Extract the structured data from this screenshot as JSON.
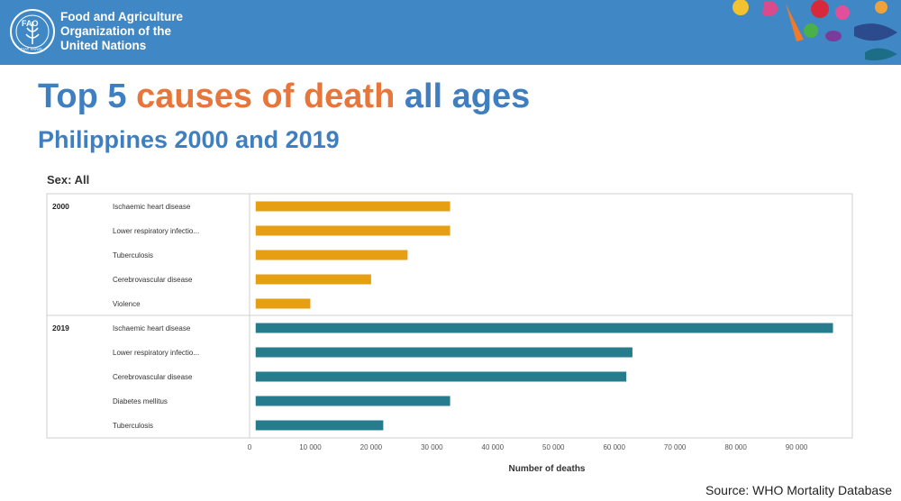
{
  "header": {
    "org_line1": "Food and Agriculture",
    "org_line2": "Organization of the",
    "org_line3": "United Nations",
    "logo_text": "FAO",
    "logo_motto": "FIAT PANIS"
  },
  "title": {
    "part1": "Top 5 ",
    "part2": "causes of death",
    "part3": " all ages"
  },
  "subtitle": "Philippines 2000 and 2019",
  "sex_label": "Sex: All",
  "source": "Source: WHO Mortality Database",
  "colors": {
    "header_bg": "#3f88c5",
    "title_blue": "#3f7fc0",
    "title_orange": "#e8763a",
    "bar_2000": "#e69f12",
    "bar_2019": "#267c8c"
  },
  "chart_data": {
    "type": "bar",
    "orientation": "horizontal",
    "xlabel": "Number of deaths",
    "xlim": [
      0,
      98000
    ],
    "xticks": [
      0,
      10000,
      20000,
      30000,
      40000,
      50000,
      60000,
      70000,
      80000,
      90000
    ],
    "xtick_labels": [
      "0",
      "10 000",
      "20 000",
      "30 000",
      "40 000",
      "50 000",
      "60 000",
      "70 000",
      "80 000",
      "90 000"
    ],
    "groups": [
      {
        "name": "2000",
        "color": "#e69f12",
        "categories": [
          "Ischaemic heart disease",
          "Lower respiratory infectio...",
          "Tuberculosis",
          "Cerebrovascular disease",
          "Violence"
        ],
        "values": [
          33000,
          33000,
          26000,
          20000,
          10000
        ]
      },
      {
        "name": "2019",
        "color": "#267c8c",
        "categories": [
          "Ischaemic heart disease",
          "Lower respiratory infectio...",
          "Cerebrovascular disease",
          "Diabetes mellitus",
          "Tuberculosis"
        ],
        "values": [
          96000,
          63000,
          62000,
          33000,
          22000
        ]
      }
    ]
  }
}
